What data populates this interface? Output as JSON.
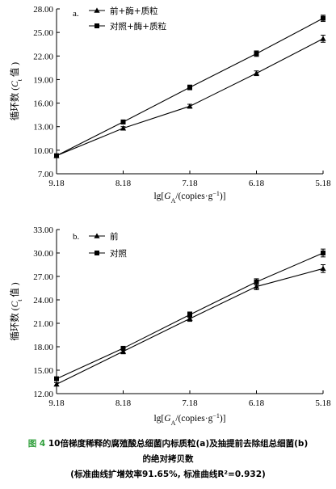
{
  "chart_data": [
    {
      "type": "line",
      "panel_label": "a.",
      "x": [
        9.18,
        8.18,
        7.18,
        6.18,
        5.18
      ],
      "x_tick_labels": [
        "9.18",
        "8.18",
        "7.18",
        "6.18",
        "5.18"
      ],
      "x_reversed": true,
      "xlabel_parts": {
        "pre": "lg[",
        "italic": "G",
        "sub": "A",
        "mid": "/(copies·g",
        "sup": "−1",
        "post": ")]"
      },
      "ylabel_parts": {
        "pre": "循环数 (",
        "italic": "C",
        "sub": "t",
        "post": " 值 )"
      },
      "ylim": [
        7.0,
        28.0
      ],
      "y_ticks": [
        "7.00",
        "10.00",
        "13.00",
        "16.00",
        "19.00",
        "22.00",
        "25.00",
        "28.00"
      ],
      "legend_position": "top-left",
      "series": [
        {
          "name": "前+酶+质粒",
          "marker": "triangle",
          "values": [
            9.3,
            12.8,
            15.6,
            19.8,
            24.2
          ],
          "errors": [
            0.2,
            0.2,
            0.25,
            0.3,
            0.45
          ]
        },
        {
          "name": "对照+酶+质粒",
          "marker": "square",
          "values": [
            9.3,
            13.6,
            18.0,
            22.3,
            26.8
          ],
          "errors": [
            0.2,
            0.25,
            0.3,
            0.35,
            0.4
          ]
        }
      ]
    },
    {
      "type": "line",
      "panel_label": "b.",
      "x": [
        9.18,
        8.18,
        7.18,
        6.18,
        5.18
      ],
      "x_tick_labels": [
        "9.18",
        "8.18",
        "7.18",
        "6.18",
        "5.18"
      ],
      "x_reversed": true,
      "xlabel_parts": {
        "pre": "lg[",
        "italic": "G",
        "sub": "A",
        "mid": "/(copies·g",
        "sup": "−1",
        "post": ")]"
      },
      "ylabel_parts": {
        "pre": "循环数 (",
        "italic": "C",
        "sub": "t",
        "post": " 值 )"
      },
      "ylim": [
        12.0,
        33.0
      ],
      "y_ticks": [
        "12.00",
        "15.00",
        "18.00",
        "21.00",
        "24.00",
        "27.00",
        "30.00",
        "33.00"
      ],
      "legend_position": "top-left",
      "series": [
        {
          "name": "前",
          "marker": "triangle",
          "values": [
            13.2,
            17.4,
            21.6,
            25.7,
            28.0
          ],
          "errors": [
            0.2,
            0.3,
            0.35,
            0.4,
            0.5
          ]
        },
        {
          "name": "对照",
          "marker": "square",
          "values": [
            13.9,
            17.8,
            22.1,
            26.3,
            30.0
          ],
          "errors": [
            0.2,
            0.25,
            0.35,
            0.4,
            0.5
          ]
        }
      ]
    }
  ],
  "caption": {
    "fig_label": "图 4",
    "line1": "10倍梯度稀释的腐殖酸总细菌内标质粒(a)及抽提前去除组总细菌(b)",
    "line2": "的绝对拷贝数",
    "line3": "(标准曲线扩增效率91.65%, 标准曲线R²=0.932)"
  }
}
